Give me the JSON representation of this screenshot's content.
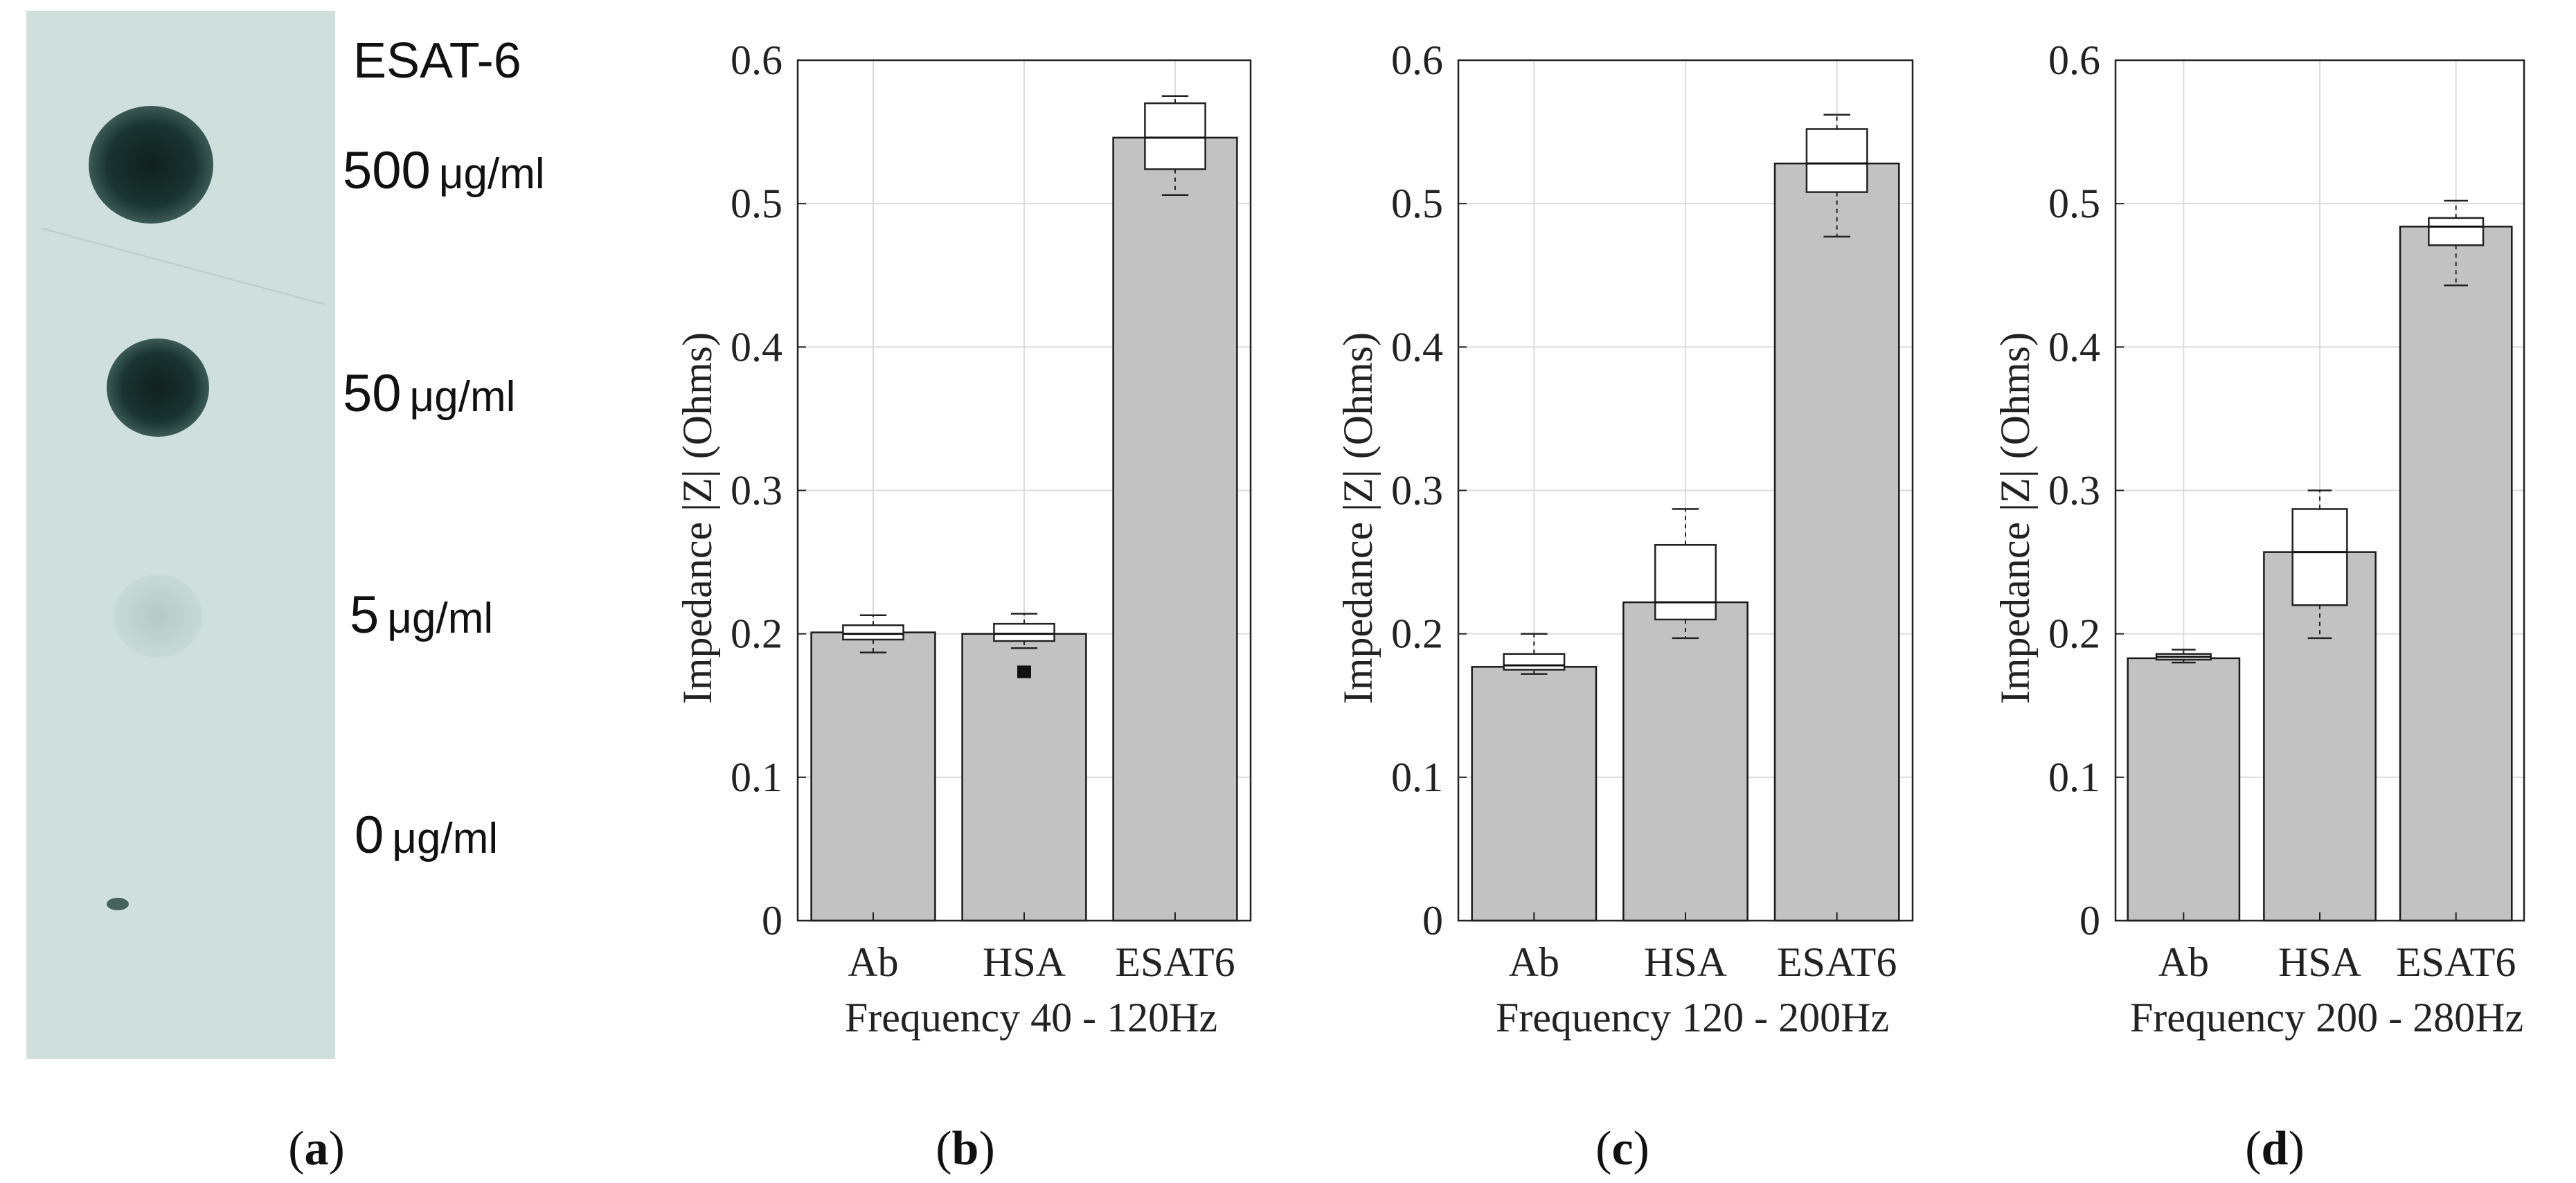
{
  "figure": {
    "panel_labels": [
      {
        "prefix": "(",
        "letter": "a",
        "suffix": ")"
      },
      {
        "prefix": "(",
        "letter": "b",
        "suffix": ")"
      },
      {
        "prefix": "(",
        "letter": "c",
        "suffix": ")"
      },
      {
        "prefix": "(",
        "letter": "d",
        "suffix": ")"
      }
    ]
  },
  "blot": {
    "title": "ESAT-6",
    "rows": [
      {
        "value": "500",
        "unit": "μg/ml",
        "intensity": "strong"
      },
      {
        "value": "50",
        "unit": "μg/ml",
        "intensity": "strong"
      },
      {
        "value": "5",
        "unit": "μg/ml",
        "intensity": "faint"
      },
      {
        "value": "0",
        "unit": "μg/ml",
        "intensity": "none"
      }
    ],
    "colors": {
      "membrane": "#cfe0dc",
      "dot": "#17322f"
    }
  },
  "chart_data": [
    {
      "type": "bar",
      "panel": "b",
      "xlabel": "Frequency 40 - 120Hz",
      "ylabel": "Impedance |Z| (Ohms)",
      "ylim": [
        0,
        0.6
      ],
      "yticks": [
        0,
        0.1,
        0.2,
        0.3,
        0.4,
        0.5,
        0.6
      ],
      "ytick_labels": [
        "0",
        "0.1",
        "0.2",
        "0.3",
        "0.4",
        "0.5",
        "0.6"
      ],
      "categories": [
        "Ab",
        "HSA",
        "ESAT6"
      ],
      "values": [
        0.201,
        0.2,
        0.546
      ],
      "boxplots": [
        {
          "whisker_low": 0.187,
          "q1": 0.196,
          "median": 0.2,
          "q3": 0.206,
          "whisker_high": 0.213,
          "outliers": []
        },
        {
          "whisker_low": 0.19,
          "q1": 0.195,
          "median": 0.2,
          "q3": 0.207,
          "whisker_high": 0.214,
          "outliers": [
            0.175,
            0.172
          ]
        },
        {
          "whisker_low": 0.506,
          "q1": 0.524,
          "median": 0.546,
          "q3": 0.57,
          "whisker_high": 0.575,
          "outliers": []
        }
      ],
      "grid": true,
      "colors": {
        "bar": "#c2c2c2",
        "bar_edge": "#1a1a1a",
        "box": "#ffffff"
      }
    },
    {
      "type": "bar",
      "panel": "c",
      "xlabel": "Frequency 120 - 200Hz",
      "ylabel": "Impedance |Z| (Ohms)",
      "ylim": [
        0,
        0.6
      ],
      "yticks": [
        0,
        0.1,
        0.2,
        0.3,
        0.4,
        0.5,
        0.6
      ],
      "ytick_labels": [
        "0",
        "0.1",
        "0.2",
        "0.3",
        "0.4",
        "0.5",
        "0.6"
      ],
      "categories": [
        "Ab",
        "HSA",
        "ESAT6"
      ],
      "values": [
        0.177,
        0.222,
        0.528
      ],
      "boxplots": [
        {
          "whisker_low": 0.172,
          "q1": 0.175,
          "median": 0.178,
          "q3": 0.186,
          "whisker_high": 0.2,
          "outliers": []
        },
        {
          "whisker_low": 0.197,
          "q1": 0.21,
          "median": 0.222,
          "q3": 0.262,
          "whisker_high": 0.287,
          "outliers": []
        },
        {
          "whisker_low": 0.477,
          "q1": 0.508,
          "median": 0.528,
          "q3": 0.552,
          "whisker_high": 0.562,
          "outliers": []
        }
      ],
      "grid": true,
      "colors": {
        "bar": "#c2c2c2",
        "bar_edge": "#1a1a1a",
        "box": "#ffffff"
      }
    },
    {
      "type": "bar",
      "panel": "d",
      "xlabel": "Frequency 200 - 280Hz",
      "ylabel": "Impedance |Z| (Ohms)",
      "ylim": [
        0,
        0.6
      ],
      "yticks": [
        0,
        0.1,
        0.2,
        0.3,
        0.4,
        0.5,
        0.6
      ],
      "ytick_labels": [
        "0",
        "0.1",
        "0.2",
        "0.3",
        "0.4",
        "0.5",
        "0.6"
      ],
      "categories": [
        "Ab",
        "HSA",
        "ESAT6"
      ],
      "values": [
        0.183,
        0.257,
        0.484
      ],
      "boxplots": [
        {
          "whisker_low": 0.18,
          "q1": 0.182,
          "median": 0.184,
          "q3": 0.186,
          "whisker_high": 0.189,
          "outliers": []
        },
        {
          "whisker_low": 0.197,
          "q1": 0.22,
          "median": 0.257,
          "q3": 0.287,
          "whisker_high": 0.3,
          "outliers": []
        },
        {
          "whisker_low": 0.443,
          "q1": 0.471,
          "median": 0.484,
          "q3": 0.49,
          "whisker_high": 0.502,
          "outliers": []
        }
      ],
      "grid": true,
      "colors": {
        "bar": "#c2c2c2",
        "bar_edge": "#1a1a1a",
        "box": "#ffffff"
      }
    }
  ]
}
